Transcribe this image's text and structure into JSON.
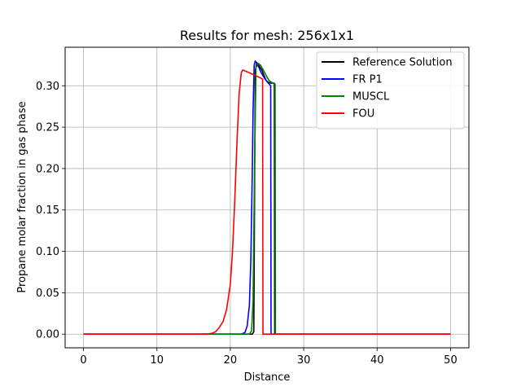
{
  "chart_data": {
    "type": "line",
    "title": "Results for mesh: 256x1x1",
    "xlabel": "Distance",
    "ylabel": "Propane molar fraction in gas phase",
    "xlim": [
      -2.5,
      52.5
    ],
    "ylim": [
      -0.0165,
      0.3465
    ],
    "xticks": [
      0,
      10,
      20,
      30,
      40,
      50
    ],
    "yticks": [
      0.0,
      0.05,
      0.1,
      0.15,
      0.2,
      0.25,
      0.3
    ],
    "xtick_labels": [
      "0",
      "10",
      "20",
      "30",
      "40",
      "50"
    ],
    "ytick_labels": [
      "0.00",
      "0.05",
      "0.10",
      "0.15",
      "0.20",
      "0.25",
      "0.30"
    ],
    "grid": true,
    "legend_position": "top-right",
    "series": [
      {
        "name": "Reference Solution",
        "color": "#000000",
        "x": [
          0,
          23.0,
          23.2,
          23.4,
          23.6,
          23.8,
          24.0,
          24.3,
          24.6,
          24.9,
          25.2,
          25.6,
          26.0,
          26.05,
          26.2,
          50
        ],
        "y": [
          0,
          0,
          0.003,
          0.318,
          0.328,
          0.326,
          0.323,
          0.319,
          0.312,
          0.306,
          0.304,
          0.303,
          0.303,
          0.0,
          0,
          0
        ]
      },
      {
        "name": "FR P1",
        "color": "#0000ff",
        "x": [
          0,
          21.5,
          22.0,
          22.3,
          22.6,
          22.8,
          23.0,
          23.1,
          23.25,
          23.4,
          23.6,
          23.9,
          24.2,
          24.6,
          25.0,
          25.4,
          25.5,
          25.55,
          26.0,
          50
        ],
        "y": [
          0,
          0,
          0.002,
          0.01,
          0.035,
          0.09,
          0.2,
          0.27,
          0.325,
          0.33,
          0.327,
          0.322,
          0.316,
          0.31,
          0.305,
          0.301,
          0.3,
          0.0,
          0,
          0
        ]
      },
      {
        "name": "MUSCL",
        "color": "#008000",
        "x": [
          0,
          22.6,
          22.9,
          23.1,
          23.3,
          23.5,
          23.8,
          24.1,
          24.5,
          24.9,
          25.3,
          25.8,
          26.1,
          26.15,
          26.5,
          50
        ],
        "y": [
          0,
          0,
          0.004,
          0.04,
          0.2,
          0.322,
          0.327,
          0.325,
          0.319,
          0.312,
          0.306,
          0.303,
          0.302,
          0.0,
          0,
          0
        ]
      },
      {
        "name": "FOU",
        "color": "#ff0000",
        "x": [
          0,
          16.0,
          17.0,
          17.5,
          18.0,
          18.5,
          19.0,
          19.5,
          20.0,
          20.3,
          20.6,
          20.9,
          21.2,
          21.5,
          21.7,
          22.0,
          22.5,
          23.0,
          23.5,
          24.0,
          24.4,
          24.45,
          25.0,
          50
        ],
        "y": [
          0,
          0,
          0.0003,
          0.001,
          0.003,
          0.008,
          0.015,
          0.03,
          0.06,
          0.1,
          0.16,
          0.23,
          0.29,
          0.316,
          0.319,
          0.318,
          0.316,
          0.314,
          0.312,
          0.31,
          0.308,
          0.0,
          0,
          0
        ]
      }
    ]
  }
}
